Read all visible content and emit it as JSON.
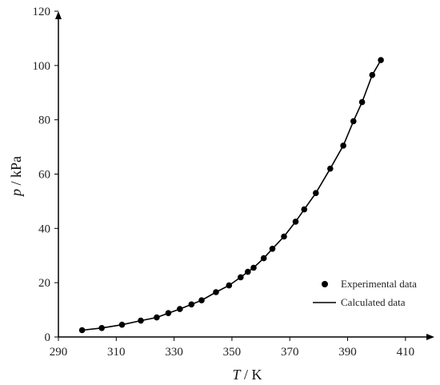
{
  "chart_data": {
    "type": "scatter",
    "title": "",
    "xlabel_var": "T",
    "xlabel_unit": " / K",
    "ylabel_var": "p",
    "ylabel_unit": " / kPa",
    "xlim": [
      290,
      420
    ],
    "ylim": [
      0,
      120
    ],
    "xticks": [
      290,
      310,
      330,
      350,
      370,
      390,
      410
    ],
    "yticks": [
      0,
      20,
      40,
      60,
      80,
      100,
      120
    ],
    "grid": false,
    "legend_position": "bottom-right",
    "series": [
      {
        "name": "Experimental data",
        "kind": "scatter",
        "color": "#000000",
        "x": [
          298.2,
          305.0,
          312.0,
          318.5,
          324.0,
          328.0,
          332.0,
          336.0,
          339.5,
          344.5,
          349.0,
          353.0,
          355.5,
          357.5,
          361.0,
          364.0,
          368.0,
          372.0,
          375.0,
          379.0,
          384.0,
          388.5,
          392.0,
          395.0,
          398.5,
          401.5
        ],
        "y": [
          2.5,
          3.3,
          4.5,
          6.0,
          7.2,
          8.8,
          10.3,
          12.0,
          13.5,
          16.5,
          19.0,
          22.0,
          24.0,
          25.5,
          29.0,
          32.5,
          37.0,
          42.5,
          47.0,
          53.0,
          62.0,
          70.5,
          79.5,
          86.5,
          96.5,
          102.0
        ]
      },
      {
        "name": "Calculated data",
        "kind": "line",
        "color": "#000000",
        "x": [
          298.2,
          305.0,
          312.0,
          318.5,
          324.0,
          328.0,
          332.0,
          336.0,
          339.5,
          344.5,
          349.0,
          353.0,
          355.5,
          357.5,
          361.0,
          364.0,
          368.0,
          372.0,
          375.0,
          379.0,
          384.0,
          388.5,
          392.0,
          395.0,
          398.5,
          401.5
        ],
        "y": [
          2.5,
          3.3,
          4.5,
          6.0,
          7.2,
          8.8,
          10.3,
          12.0,
          13.5,
          16.5,
          19.0,
          22.0,
          24.0,
          25.5,
          29.0,
          32.5,
          37.0,
          42.5,
          47.0,
          53.0,
          62.0,
          70.5,
          79.5,
          86.5,
          96.5,
          102.0
        ]
      }
    ]
  }
}
